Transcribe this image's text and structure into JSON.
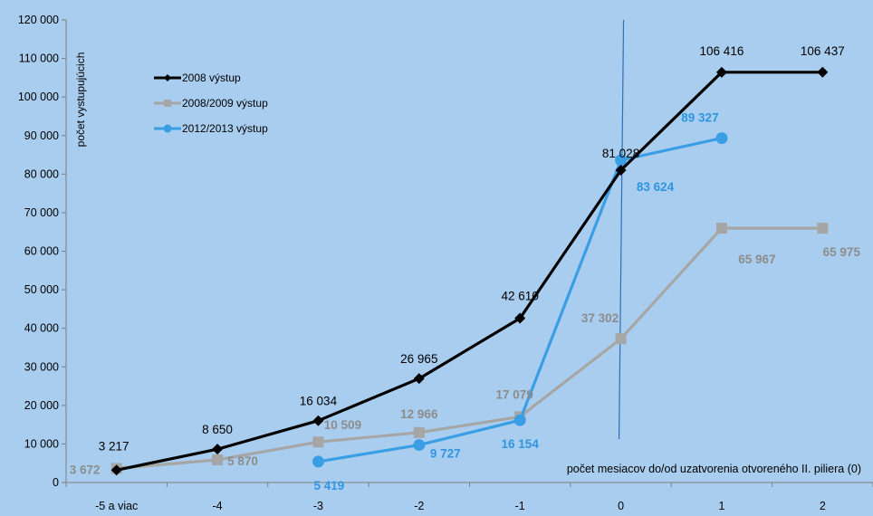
{
  "chart_data": {
    "type": "line",
    "ylabel": "počet vystupujúcich",
    "xlabel": "počet mesiacov do/od uzatvorenia otvoreného II. piliera (0)",
    "categories": [
      "-5 a viac",
      "-4",
      "-3",
      "-2",
      "-1",
      "0",
      "1",
      "2"
    ],
    "ylim": [
      0,
      120000
    ],
    "ytick_step": 10000,
    "ytick_labels": [
      "0",
      "10 000",
      "20 000",
      "30 000",
      "40 000",
      "50 000",
      "60 000",
      "70 000",
      "80 000",
      "90 000",
      "100 000",
      "110 000",
      "120 000"
    ],
    "grid": false,
    "legend_position": "top-left",
    "vertical_line_at": "0",
    "series": [
      {
        "name": "2008 výstup",
        "color": "#000000",
        "marker": "diamond",
        "values": [
          3217,
          8650,
          16034,
          26965,
          42610,
          81028,
          106416,
          106437
        ],
        "labels": [
          "3 217",
          "8 650",
          "16 034",
          "26 965",
          "42 610",
          "81 028",
          "106 416",
          "106 437"
        ],
        "label_color": "#000000"
      },
      {
        "name": "2008/2009 výstup",
        "color": "#a6a6a6",
        "marker": "square",
        "values": [
          3672,
          5870,
          10509,
          12966,
          17079,
          37302,
          65967,
          65975
        ],
        "labels": [
          "3 672",
          "5 870",
          "10 509",
          "12 966",
          "17 079",
          "37 302",
          "65 967",
          "65 975"
        ],
        "label_color": "#8c8c8c"
      },
      {
        "name": "2012/2013 výstup",
        "color": "#3a9ee4",
        "marker": "circle",
        "values": [
          null,
          null,
          5419,
          9727,
          16154,
          83624,
          89327,
          null
        ],
        "labels": [
          null,
          null,
          "5 419",
          "9 727",
          "16 154",
          "83 624",
          "89 327",
          null
        ],
        "label_color": "#2e95e0"
      }
    ]
  }
}
